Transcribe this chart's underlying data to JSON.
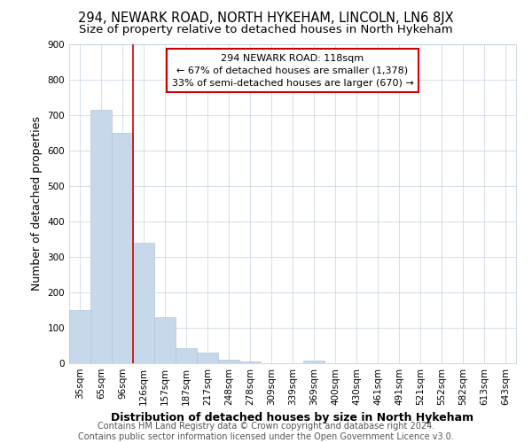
{
  "title1": "294, NEWARK ROAD, NORTH HYKEHAM, LINCOLN, LN6 8JX",
  "title2": "Size of property relative to detached houses in North Hykeham",
  "xlabel": "Distribution of detached houses by size in North Hykeham",
  "ylabel": "Number of detached properties",
  "footer1": "Contains HM Land Registry data © Crown copyright and database right 2024.",
  "footer2": "Contains public sector information licensed under the Open Government Licence v3.0.",
  "categories": [
    "35sqm",
    "65sqm",
    "96sqm",
    "126sqm",
    "157sqm",
    "187sqm",
    "217sqm",
    "248sqm",
    "278sqm",
    "309sqm",
    "339sqm",
    "369sqm",
    "400sqm",
    "430sqm",
    "461sqm",
    "491sqm",
    "521sqm",
    "552sqm",
    "582sqm",
    "613sqm",
    "643sqm"
  ],
  "values": [
    150,
    715,
    650,
    340,
    130,
    42,
    30,
    10,
    5,
    0,
    0,
    8,
    0,
    0,
    0,
    0,
    0,
    0,
    0,
    0,
    0
  ],
  "bar_color": "#c8d8eb",
  "bar_edge_color": "#aec6d8",
  "red_line_x": 3.0,
  "annotation_text": "294 NEWARK ROAD: 118sqm\n← 67% of detached houses are smaller (1,378)\n33% of semi-detached houses are larger (670) →",
  "annotation_box_color": "#ffffff",
  "annotation_box_edge": "#cc0000",
  "ylim": [
    0,
    900
  ],
  "yticks": [
    0,
    100,
    200,
    300,
    400,
    500,
    600,
    700,
    800,
    900
  ],
  "bg_color": "#ffffff",
  "grid_color": "#ccd8e8",
  "title1_fontsize": 10.5,
  "title2_fontsize": 9.5,
  "axis_label_fontsize": 9,
  "tick_fontsize": 7.5,
  "footer_fontsize": 7
}
